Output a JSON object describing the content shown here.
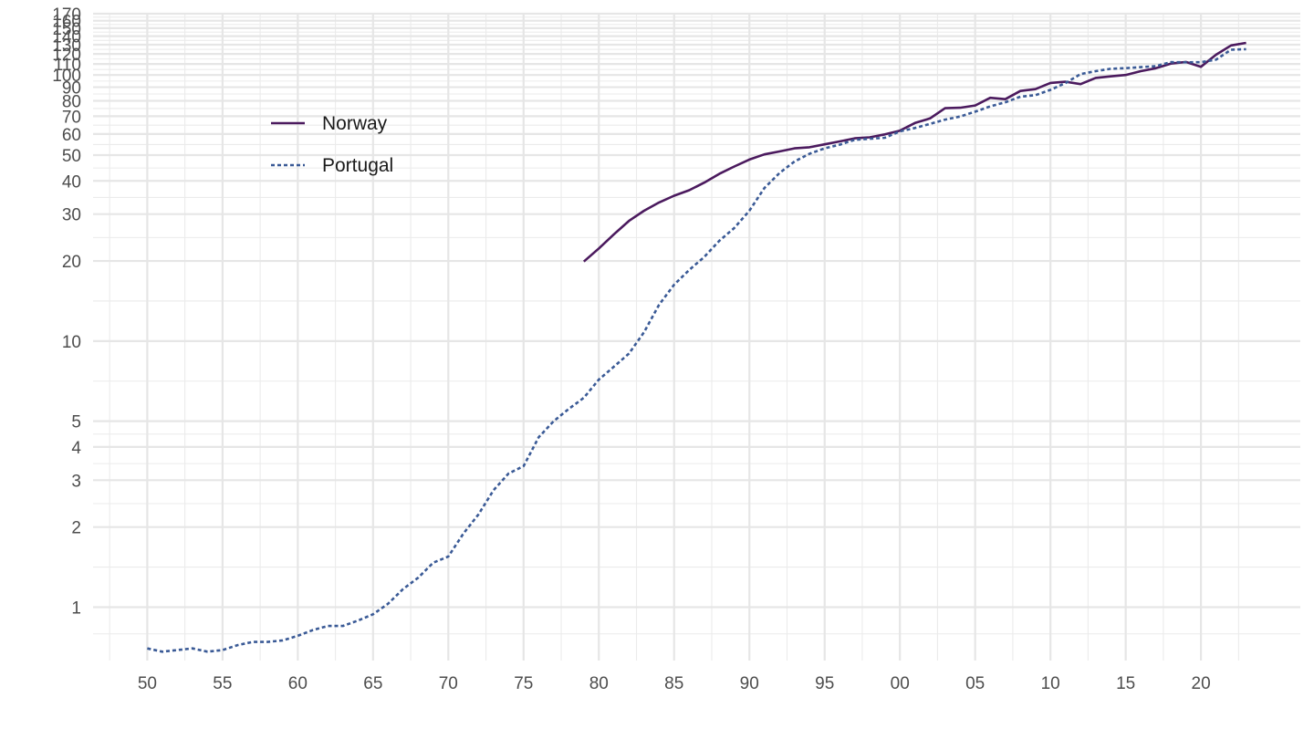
{
  "chart_data": {
    "type": "line",
    "title": "",
    "xlabel": "",
    "ylabel": "",
    "x_scale": "linear",
    "y_scale": "log10",
    "xlim": [
      1946.4,
      2026.6
    ],
    "ylim": [
      0.63,
      170
    ],
    "grid": true,
    "legend_position": "top-left",
    "x_ticks": [
      1950,
      1955,
      1960,
      1965,
      1970,
      1975,
      1980,
      1985,
      1990,
      1995,
      2000,
      2005,
      2010,
      2015,
      2020
    ],
    "x_tick_labels": [
      "50",
      "55",
      "60",
      "65",
      "70",
      "75",
      "80",
      "85",
      "90",
      "95",
      "00",
      "05",
      "10",
      "15",
      "20"
    ],
    "y_ticks": [
      1,
      2,
      3,
      4,
      5,
      10,
      20,
      30,
      40,
      50,
      60,
      70,
      80,
      90,
      100,
      110,
      120,
      130,
      140,
      150,
      160,
      170
    ],
    "y_tick_labels": [
      "1",
      "2",
      "3",
      "4",
      "5",
      "10",
      "20",
      "30",
      "40",
      "50",
      "60",
      "70",
      "80",
      "90",
      "100",
      "110",
      "120",
      "130",
      "140",
      "150",
      "160",
      "170"
    ],
    "series": [
      {
        "name": "Norway",
        "color": "#4b1a5e",
        "dash": "solid",
        "x": [
          1979,
          1980,
          1981,
          1982,
          1983,
          1984,
          1985,
          1986,
          1987,
          1988,
          1989,
          1990,
          1991,
          1992,
          1993,
          1994,
          1995,
          1996,
          1997,
          1998,
          1999,
          2000,
          2001,
          2002,
          2003,
          2004,
          2005,
          2006,
          2007,
          2008,
          2009,
          2010,
          2011,
          2012,
          2013,
          2014,
          2015,
          2016,
          2017,
          2018,
          2019,
          2020,
          2021,
          2022,
          2023
        ],
        "y": [
          19.9,
          22.3,
          25.2,
          28.3,
          30.9,
          33.2,
          35.2,
          36.9,
          39.4,
          42.5,
          45.3,
          48.1,
          50.3,
          51.6,
          53.0,
          53.5,
          54.9,
          56.3,
          57.8,
          58.3,
          59.8,
          61.8,
          66.0,
          68.7,
          75.0,
          75.3,
          76.8,
          82.1,
          81.1,
          87.1,
          88.5,
          93.4,
          94.3,
          92.4,
          97.5,
          98.8,
          100.0,
          103.4,
          106.0,
          110.4,
          112.0,
          107.4,
          119.2,
          129.2,
          132.0
        ]
      },
      {
        "name": "Portugal",
        "color": "#3a5a96",
        "dash": "dotted",
        "x": [
          1950,
          1951,
          1952,
          1953,
          1954,
          1955,
          1956,
          1957,
          1958,
          1959,
          1960,
          1961,
          1962,
          1963,
          1964,
          1965,
          1966,
          1967,
          1968,
          1969,
          1970,
          1971,
          1972,
          1973,
          1974,
          1975,
          1976,
          1977,
          1978,
          1979,
          1980,
          1981,
          1982,
          1983,
          1984,
          1985,
          1986,
          1987,
          1988,
          1989,
          1990,
          1991,
          1992,
          1993,
          1994,
          1995,
          1996,
          1997,
          1998,
          1999,
          2000,
          2001,
          2002,
          2003,
          2004,
          2005,
          2006,
          2007,
          2008,
          2009,
          2010,
          2011,
          2012,
          2013,
          2014,
          2015,
          2016,
          2017,
          2018,
          2019,
          2020,
          2021,
          2022,
          2023
        ],
        "y": [
          0.7,
          0.68,
          0.69,
          0.7,
          0.68,
          0.69,
          0.72,
          0.74,
          0.74,
          0.75,
          0.78,
          0.82,
          0.85,
          0.85,
          0.89,
          0.94,
          1.03,
          1.17,
          1.29,
          1.47,
          1.55,
          1.89,
          2.23,
          2.75,
          3.18,
          3.39,
          4.35,
          5.0,
          5.56,
          6.12,
          7.17,
          8.01,
          8.98,
          10.8,
          13.7,
          16.3,
          18.5,
          20.7,
          23.8,
          26.6,
          30.9,
          37.6,
          42.8,
          47.3,
          50.6,
          53.0,
          54.7,
          57.1,
          57.6,
          58.1,
          61.4,
          63.2,
          65.5,
          68.0,
          69.8,
          72.8,
          76.2,
          79.0,
          82.9,
          84.0,
          87.9,
          93.3,
          100.8,
          103.4,
          105.5,
          106.1,
          107.0,
          108.0,
          111.8,
          111.6,
          111.8,
          114.2,
          124.5,
          125.0
        ]
      }
    ]
  }
}
